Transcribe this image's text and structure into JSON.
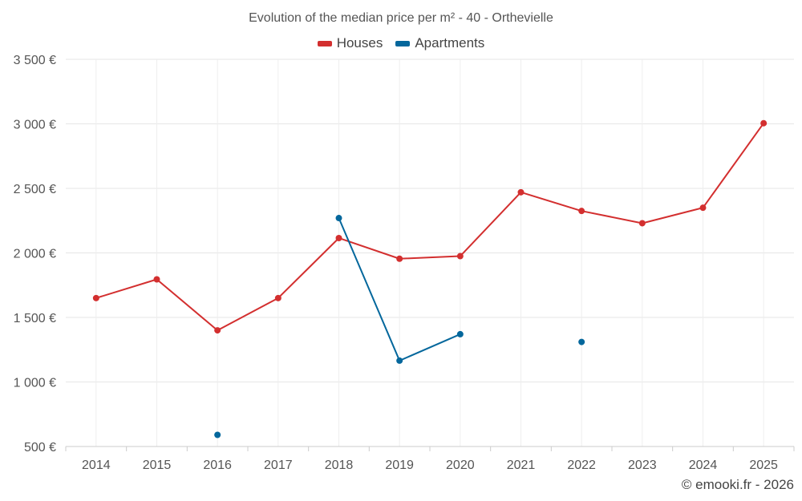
{
  "chart_data": {
    "type": "line",
    "title": "Evolution of the median price per m² - 40 - Orthevielle",
    "categories": [
      "2014",
      "2015",
      "2016",
      "2017",
      "2018",
      "2019",
      "2020",
      "2021",
      "2022",
      "2023",
      "2024",
      "2025"
    ],
    "ylim": [
      500,
      3500
    ],
    "yticks": [
      500,
      1000,
      1500,
      2000,
      2500,
      3000,
      3500
    ],
    "ytick_labels": [
      "500 €",
      "1 000 €",
      "1 500 €",
      "2 000 €",
      "2 500 €",
      "3 000 €",
      "3 500 €"
    ],
    "grid": true,
    "legend_position": "top-center",
    "series": [
      {
        "name": "Houses",
        "color": "#d32f2f",
        "values": [
          1650,
          1795,
          1400,
          1650,
          2115,
          1955,
          1975,
          2470,
          2325,
          2230,
          2350,
          3005
        ]
      },
      {
        "name": "Apartments",
        "color": "#04679c",
        "values": [
          null,
          null,
          590,
          null,
          2270,
          1165,
          1370,
          null,
          1310,
          null,
          null,
          null
        ]
      }
    ]
  },
  "footer": {
    "credit": "© emooki.fr - 2026"
  }
}
